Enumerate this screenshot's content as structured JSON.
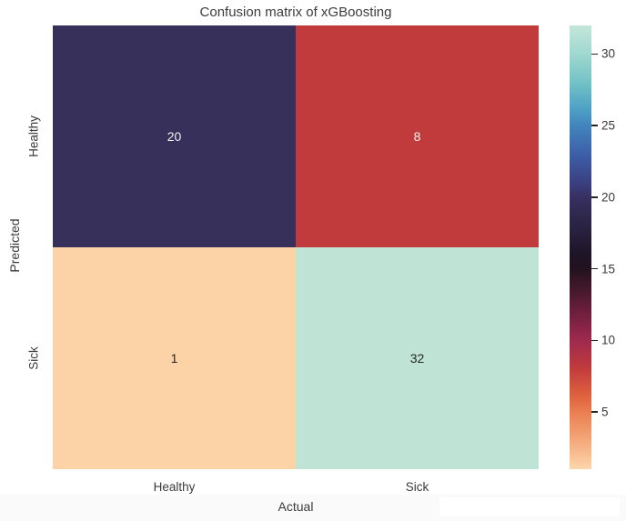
{
  "figure": {
    "title": "Confusion matrix of xGBoosting"
  },
  "chart_data": {
    "type": "heatmap",
    "title": "Confusion matrix of xGBoosting",
    "xlabel": "Actual",
    "ylabel": "Predicted",
    "x_categories": [
      "Healthy",
      "Sick"
    ],
    "y_categories": [
      "Healthy",
      "Sick"
    ],
    "matrix": [
      [
        20,
        8
      ],
      [
        1,
        32
      ]
    ],
    "vmin": 1,
    "vmax": 32,
    "colormap": "icefire_r",
    "grid": false,
    "legend_position": "right-colorbar",
    "cell_colors": [
      [
        "#36305A",
        "#C23B3C"
      ],
      [
        "#FCD3A7",
        "#BFE3D5"
      ]
    ],
    "annot_colors": [
      [
        "#F2F2F2",
        "#F2F2F2"
      ],
      [
        "#262626",
        "#262626"
      ]
    ],
    "colorbar": {
      "ticks": [
        5,
        10,
        15,
        20,
        25,
        30
      ],
      "gradient": [
        {
          "v": 32,
          "c": "#C3E6D9"
        },
        {
          "v": 30,
          "c": "#A0D8D0"
        },
        {
          "v": 28,
          "c": "#72C2C6"
        },
        {
          "v": 26,
          "c": "#4B9EC5"
        },
        {
          "v": 25,
          "c": "#4284BC"
        },
        {
          "v": 23,
          "c": "#3D5FA9"
        },
        {
          "v": 21,
          "c": "#3A4080"
        },
        {
          "v": 20,
          "c": "#373061"
        },
        {
          "v": 18,
          "c": "#2A2343"
        },
        {
          "v": 16,
          "c": "#1E1427"
        },
        {
          "v": 15,
          "c": "#23121F"
        },
        {
          "v": 13,
          "c": "#521A31"
        },
        {
          "v": 11,
          "c": "#872346"
        },
        {
          "v": 10,
          "c": "#9E2A4E"
        },
        {
          "v": 8,
          "c": "#C23B3D"
        },
        {
          "v": 6,
          "c": "#E0653F"
        },
        {
          "v": 5,
          "c": "#EA7E51"
        },
        {
          "v": 3,
          "c": "#F4A87A"
        },
        {
          "v": 1,
          "c": "#FCD6AB"
        }
      ]
    }
  },
  "colors": {
    "title_text": "#3C3C3C",
    "axis_text": "#3A3A3A",
    "tick_mark": "#262626",
    "background": "#FFFFFF"
  }
}
